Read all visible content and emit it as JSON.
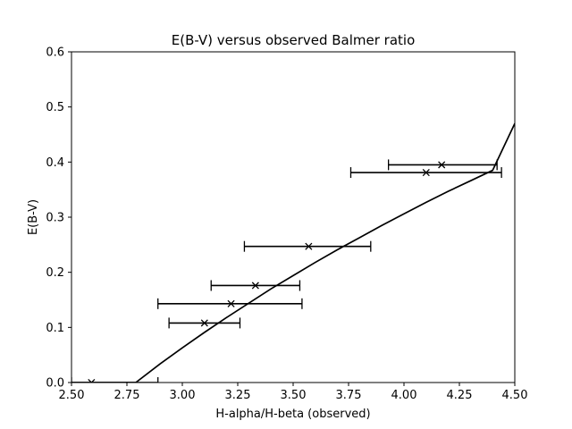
{
  "chart_data": {
    "type": "scatter",
    "title": "E(B-V) versus observed Balmer ratio",
    "xlabel": "H-alpha/H-beta (observed)",
    "ylabel": "E(B-V)",
    "xlim": [
      2.5,
      4.5
    ],
    "ylim": [
      0.0,
      0.6
    ],
    "xticks": [
      "2.50",
      "2.75",
      "3.00",
      "3.25",
      "3.50",
      "3.75",
      "4.00",
      "4.25",
      "4.50"
    ],
    "yticks": [
      "0.0",
      "0.1",
      "0.2",
      "0.3",
      "0.4",
      "0.5",
      "0.6"
    ],
    "grid": false,
    "line_color": "#000000",
    "series": [
      {
        "kind": "curve",
        "x": [
          2.5,
          2.6,
          2.7,
          2.79,
          2.9,
          3.0,
          3.1,
          3.2,
          3.3,
          3.4,
          3.5,
          3.6,
          3.7,
          3.8,
          3.9,
          4.0,
          4.1,
          4.2,
          4.3,
          4.4,
          4.5
        ],
        "y": [
          0.0,
          0.0,
          0.0,
          0.0,
          0.034,
          0.063,
          0.091,
          0.118,
          0.144,
          0.17,
          0.194,
          0.218,
          0.241,
          0.263,
          0.285,
          0.306,
          0.327,
          0.347,
          0.366,
          0.385,
          0.47
        ]
      },
      {
        "kind": "points_with_xerr",
        "marker": "x",
        "points": [
          {
            "x": 2.59,
            "y": 0.0,
            "xerr_low": 2.5,
            "xerr_high": 2.89
          },
          {
            "x": 3.1,
            "y": 0.108,
            "xerr_low": 2.94,
            "xerr_high": 3.26
          },
          {
            "x": 3.22,
            "y": 0.143,
            "xerr_low": 2.89,
            "xerr_high": 3.54
          },
          {
            "x": 3.33,
            "y": 0.176,
            "xerr_low": 3.13,
            "xerr_high": 3.53
          },
          {
            "x": 3.57,
            "y": 0.247,
            "xerr_low": 3.28,
            "xerr_high": 3.85
          },
          {
            "x": 4.1,
            "y": 0.381,
            "xerr_low": 3.76,
            "xerr_high": 4.44
          },
          {
            "x": 4.17,
            "y": 0.395,
            "xerr_low": 3.93,
            "xerr_high": 4.42
          }
        ]
      }
    ]
  }
}
